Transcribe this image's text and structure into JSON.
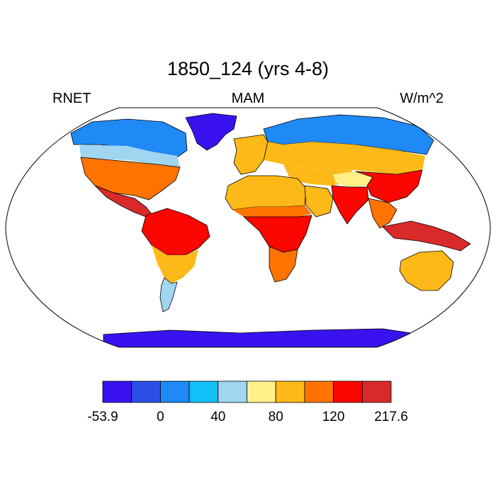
{
  "figure": {
    "title": "1850_124 (yrs 4-8)",
    "left_label": "RNET",
    "center_label": "MAM",
    "right_label": "W/m^2"
  },
  "map": {
    "projection": "robinson",
    "variable": "RNET",
    "season": "MAM",
    "units": "W/m^2",
    "ocean_color": "#ffffff",
    "coastline_color": "#000000"
  },
  "colorbar": {
    "colors": [
      "#3a12f0",
      "#2c4fe6",
      "#1f89f5",
      "#12bff6",
      "#a0d6f0",
      "#fff08a",
      "#fdb917",
      "#ff7400",
      "#fb0600",
      "#d92a2a"
    ],
    "tick_labels": [
      "-53.9",
      "0",
      "40",
      "80",
      "120",
      "217.6"
    ]
  },
  "regions": [
    {
      "name": "Greenland",
      "color": "#3a12f0"
    },
    {
      "name": "Antarctica",
      "color": "#3a12f0"
    },
    {
      "name": "Arctic North America",
      "color": "#1f89f5"
    },
    {
      "name": "Canada",
      "color": "#a0d6f0"
    },
    {
      "name": "United States",
      "color": "#ff7400"
    },
    {
      "name": "Central America",
      "color": "#d92a2a"
    },
    {
      "name": "Amazon",
      "color": "#fb0600"
    },
    {
      "name": "Southern South America",
      "color": "#fdb917"
    },
    {
      "name": "Patagonia",
      "color": "#a0d6f0"
    },
    {
      "name": "Siberia",
      "color": "#1f89f5"
    },
    {
      "name": "Northern Eurasia",
      "color": "#fdb917"
    },
    {
      "name": "Europe",
      "color": "#fdb917"
    },
    {
      "name": "Sahara",
      "color": "#fdb917"
    },
    {
      "name": "Sahel",
      "color": "#ff7400"
    },
    {
      "name": "Central Africa",
      "color": "#fb0600"
    },
    {
      "name": "Southern Africa",
      "color": "#ff7400"
    },
    {
      "name": "Arabia",
      "color": "#fdb917"
    },
    {
      "name": "Central Asia",
      "color": "#fdb917"
    },
    {
      "name": "Tibet",
      "color": "#fff08a"
    },
    {
      "name": "India",
      "color": "#fb0600"
    },
    {
      "name": "China",
      "color": "#ff7400"
    },
    {
      "name": "Southeast Asia",
      "color": "#d92a2a"
    },
    {
      "name": "Maritime Continent",
      "color": "#fb0600"
    },
    {
      "name": "Australia",
      "color": "#fdb917"
    }
  ]
}
